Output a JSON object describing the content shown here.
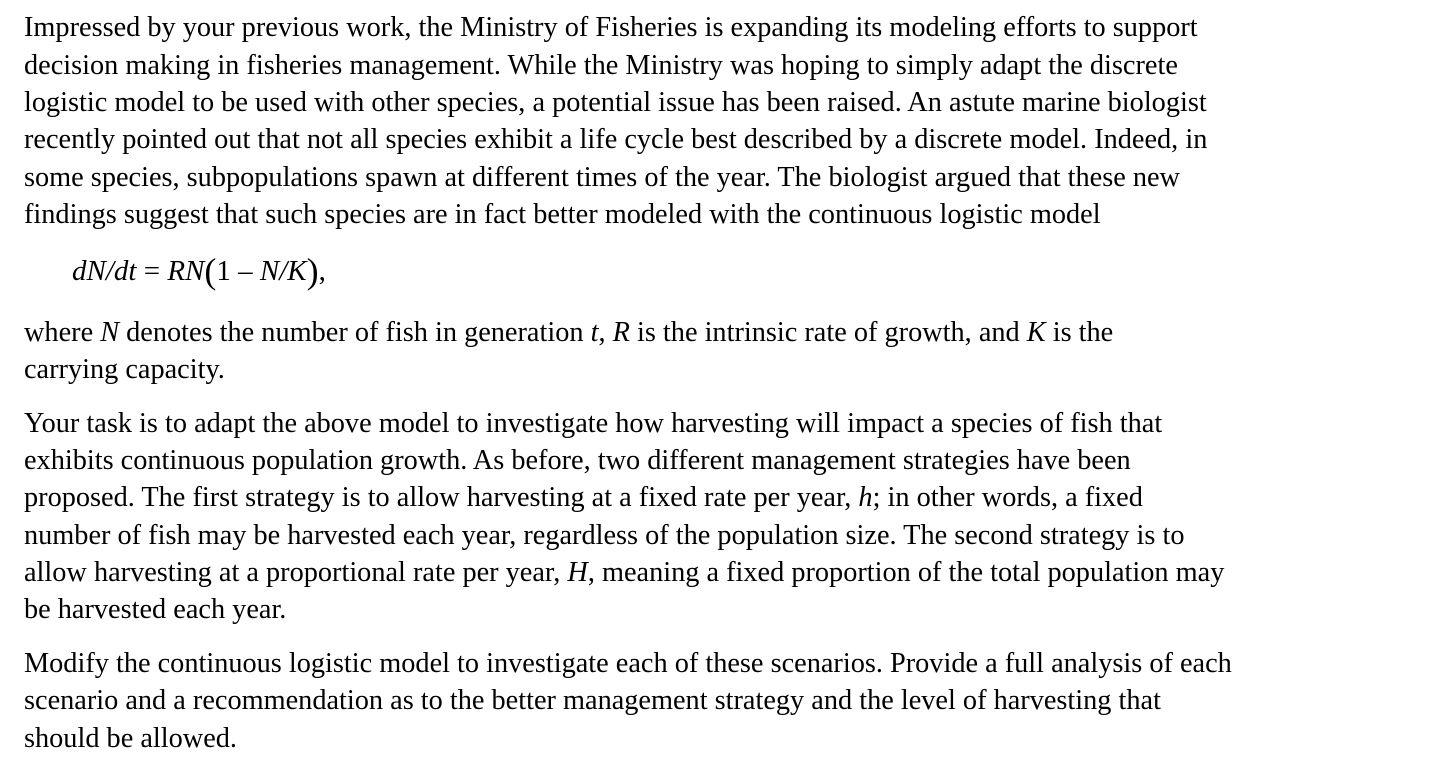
{
  "p1": [
    "Impressed by your previous work, the Ministry of Fisheries is expanding its modeling efforts to support",
    "decision making in fisheries management. While the Ministry was hoping to simply adapt the discrete",
    "logistic model to be used with other species, a potential issue has been raised. An astute marine biologist",
    "recently pointed out that not all species exhibit a life cycle best described by a discrete model. Indeed, in",
    "some species, subpopulations spawn at different times of the year. The biologist argued that these new",
    "findings suggest that such species are in fact better modeled with the continuous logistic model"
  ],
  "equation": {
    "lhs": "dN/dt",
    "eq": " = ",
    "rn": "RN",
    "open": "(",
    "one": "1 – ",
    "nk": "N/K",
    "close": ")",
    "comma": ","
  },
  "p2": {
    "l1a": "where ",
    "N": "N",
    "l1b": " denotes the number of fish in generation ",
    "t": "t",
    "l1c": ", ",
    "R": "R",
    "l1d": " is the intrinsic rate of growth, and ",
    "K": "K",
    "l1e": " is the",
    "l2": "carrying capacity."
  },
  "p3": {
    "l1": "Your task is to adapt the above model to investigate how harvesting will impact a species of fish that",
    "l2": "exhibits continuous population growth. As before, two different management strategies have been",
    "l3a": "proposed. The first strategy is to allow harvesting at a fixed rate per year, ",
    "h": "h",
    "l3b": "; in other words, a fixed",
    "l4": "number of fish may be harvested each year, regardless of the population size. The second strategy is to",
    "l5a": "allow harvesting at a proportional rate per year, ",
    "H": "H",
    "l5b": ", meaning a fixed proportion of the total population may",
    "l6": "be harvested each year."
  },
  "p4": [
    "Modify the continuous logistic model to investigate each of these scenarios. Provide a full analysis of each",
    "scenario and a recommendation as to the better management strategy and the level of harvesting that",
    "should be allowed."
  ]
}
